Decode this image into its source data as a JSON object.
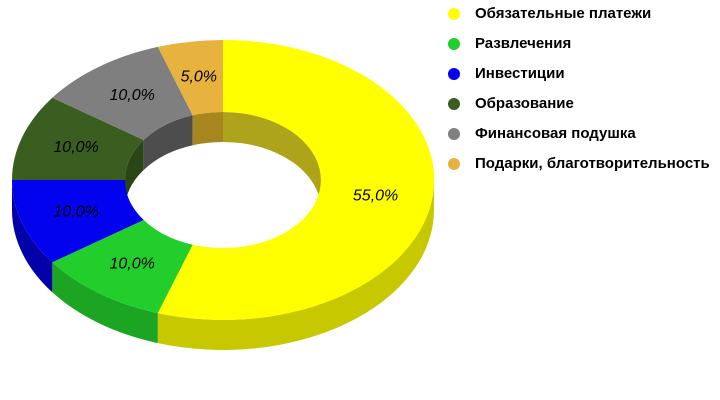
{
  "background_color": "#FFFFFF",
  "chart_data": {
    "type": "pie",
    "subtype": "3d-donut",
    "legend_position": "top-right",
    "start_angle_deg": -90,
    "direction": "clockwise",
    "value_label_color": "#000000",
    "value_label_style": "italic",
    "segments": [
      {
        "id": "mandatory-payments",
        "label": "Обязательные платежи",
        "value": 55.0,
        "value_label": "55,0%",
        "color": "#FFFF00",
        "side_color": "#C8C800",
        "inner_color": "#AEA41C"
      },
      {
        "id": "entertainment",
        "label": "Развлечения",
        "value": 10.0,
        "value_label": "10,0%",
        "color": "#22CE2B",
        "side_color": "#1BA522",
        "inner_color": "#15831B"
      },
      {
        "id": "investments",
        "label": "Инвестиции",
        "value": 10.0,
        "value_label": "10,0%",
        "color": "#0202EE",
        "side_color": "#0202A8",
        "inner_color": "#01017E"
      },
      {
        "id": "education",
        "label": "Образование",
        "value": 10.0,
        "value_label": "10,0%",
        "color": "#3A5E20",
        "side_color": "#2B4717",
        "inner_color": "#2A4516"
      },
      {
        "id": "financial-cushion",
        "label": "Финансовая подушка",
        "value": 10.0,
        "value_label": "10,0%",
        "color": "#7F7F7F",
        "side_color": "#595959",
        "inner_color": "#4D4D4D"
      },
      {
        "id": "gifts-charity",
        "label": "Подарки, благотворительность",
        "value": 5.0,
        "value_label": "5,0%",
        "color": "#E7B23E",
        "side_color": "#B08828",
        "inner_color": "#A8861F"
      }
    ]
  }
}
